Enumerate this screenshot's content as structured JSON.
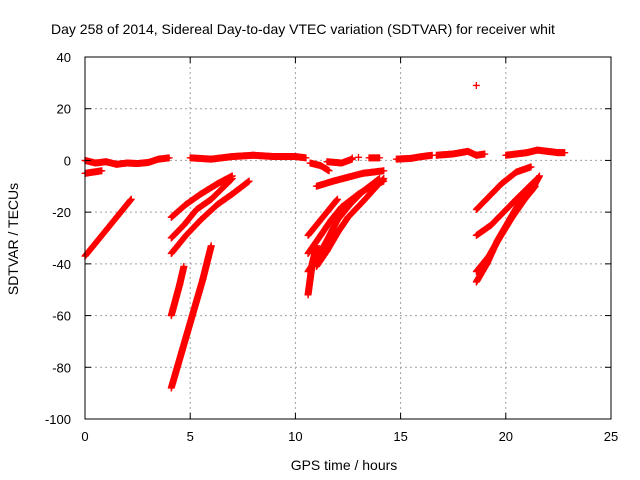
{
  "chart_data": {
    "type": "scatter",
    "title": "Day 258 of 2014, Sidereal Day-to-day VTEC variation (SDTVAR) for receiver whit",
    "xlabel": "GPS time / hours",
    "ylabel": "SDTVAR / TECUs",
    "xlim": [
      0,
      25
    ],
    "ylim": [
      -100,
      40
    ],
    "xticks": [
      0,
      5,
      10,
      15,
      20,
      25
    ],
    "yticks": [
      -100,
      -80,
      -60,
      -40,
      -20,
      0,
      20,
      40
    ],
    "grid": true,
    "marker": "+",
    "color": "#ff0000",
    "series": [
      {
        "segments": [
          [
            [
              0.0,
              0.0
            ],
            [
              0.5,
              -1.0
            ],
            [
              1.0,
              -0.5
            ],
            [
              1.5,
              -1.5
            ],
            [
              2.0,
              -1.0
            ],
            [
              2.5,
              -1.2
            ],
            [
              3.0,
              -0.8
            ],
            [
              3.5,
              0.5
            ],
            [
              4.0,
              1.0
            ]
          ],
          [
            [
              0.0,
              -5.0
            ],
            [
              0.8,
              -4.0
            ]
          ],
          [
            [
              0.0,
              -37.0
            ],
            [
              0.5,
              -32.0
            ],
            [
              1.0,
              -27.0
            ],
            [
              1.5,
              -22.0
            ],
            [
              2.2,
              -15.0
            ]
          ],
          [
            [
              4.1,
              -22.0
            ],
            [
              4.8,
              -17.0
            ],
            [
              5.5,
              -13.0
            ],
            [
              6.3,
              -9.0
            ],
            [
              7.0,
              -6.0
            ]
          ],
          [
            [
              4.1,
              -30.0
            ],
            [
              4.7,
              -25.0
            ],
            [
              5.3,
              -19.0
            ],
            [
              6.0,
              -15.0
            ],
            [
              7.0,
              -7.0
            ]
          ],
          [
            [
              4.1,
              -36.0
            ],
            [
              4.8,
              -29.0
            ],
            [
              5.5,
              -23.0
            ],
            [
              6.3,
              -17.0
            ],
            [
              7.0,
              -13.0
            ],
            [
              7.8,
              -8.0
            ]
          ],
          [
            [
              4.1,
              -60.0
            ],
            [
              4.5,
              -48.0
            ],
            [
              4.7,
              -41.0
            ]
          ],
          [
            [
              4.1,
              -88.0
            ],
            [
              4.6,
              -74.0
            ],
            [
              5.1,
              -60.0
            ],
            [
              5.6,
              -46.0
            ],
            [
              6.0,
              -33.0
            ]
          ],
          [
            [
              5.0,
              1.0
            ],
            [
              6.0,
              0.5
            ],
            [
              7.0,
              1.5
            ],
            [
              8.0,
              2.0
            ],
            [
              9.0,
              1.5
            ],
            [
              10.0,
              1.5
            ],
            [
              10.5,
              1.0
            ]
          ],
          [
            [
              10.6,
              -52.0
            ],
            [
              10.8,
              -40.0
            ],
            [
              11.0,
              -33.0
            ]
          ],
          [
            [
              10.6,
              -43.0
            ],
            [
              11.0,
              -38.0
            ],
            [
              11.5,
              -31.0
            ],
            [
              12.0,
              -23.0
            ],
            [
              12.6,
              -17.0
            ],
            [
              13.2,
              -12.0
            ],
            [
              14.0,
              -7.0
            ]
          ],
          [
            [
              10.6,
              -36.0
            ],
            [
              11.2,
              -29.0
            ],
            [
              11.7,
              -23.0
            ],
            [
              12.2,
              -18.0
            ],
            [
              13.0,
              -13.0
            ],
            [
              13.6,
              -10.0
            ],
            [
              14.2,
              -8.0
            ]
          ],
          [
            [
              11.0,
              -41.0
            ],
            [
              11.5,
              -35.0
            ],
            [
              12.0,
              -28.0
            ],
            [
              12.5,
              -22.0
            ],
            [
              13.2,
              -16.0
            ],
            [
              14.2,
              -7.0
            ]
          ],
          [
            [
              10.6,
              -29.0
            ],
            [
              11.2,
              -23.0
            ],
            [
              11.8,
              -17.0
            ],
            [
              12.0,
              -15.0
            ]
          ],
          [
            [
              11.0,
              -10.0
            ],
            [
              11.8,
              -8.0
            ],
            [
              12.5,
              -6.5
            ],
            [
              13.2,
              -5.0
            ],
            [
              14.2,
              -4.0
            ]
          ],
          [
            [
              10.7,
              -1.0
            ],
            [
              11.2,
              -2.0
            ],
            [
              11.6,
              -4.0
            ]
          ],
          [
            [
              11.5,
              -0.5
            ],
            [
              12.2,
              -1.0
            ],
            [
              12.7,
              0.5
            ]
          ],
          [
            [
              13.5,
              1.0
            ],
            [
              14.0,
              1.0
            ]
          ],
          [
            [
              14.8,
              0.5
            ],
            [
              15.5,
              0.8
            ],
            [
              16.0,
              1.5
            ],
            [
              16.5,
              2.0
            ]
          ],
          [
            [
              16.7,
              2.0
            ],
            [
              17.5,
              2.5
            ],
            [
              18.2,
              3.5
            ],
            [
              18.6,
              2.0
            ],
            [
              19.0,
              2.5
            ]
          ],
          [
            [
              18.6,
              -19.0
            ],
            [
              19.2,
              -14.0
            ],
            [
              19.8,
              -9.0
            ],
            [
              20.5,
              -4.5
            ],
            [
              21.2,
              -2.5
            ]
          ],
          [
            [
              18.6,
              -29.0
            ],
            [
              19.3,
              -25.0
            ],
            [
              19.9,
              -20.0
            ],
            [
              20.5,
              -15.0
            ],
            [
              21.0,
              -11.0
            ],
            [
              21.5,
              -7.0
            ]
          ],
          [
            [
              18.6,
              -47.0
            ],
            [
              19.1,
              -40.0
            ],
            [
              19.6,
              -31.0
            ],
            [
              20.1,
              -24.0
            ],
            [
              20.6,
              -17.0
            ],
            [
              21.2,
              -12.0
            ],
            [
              21.6,
              -6.0
            ]
          ],
          [
            [
              18.6,
              -43.0
            ],
            [
              19.2,
              -37.0
            ],
            [
              19.7,
              -30.0
            ],
            [
              20.3,
              -22.0
            ],
            [
              20.9,
              -15.0
            ],
            [
              21.4,
              -10.0
            ]
          ],
          [
            [
              20.0,
              2.0
            ],
            [
              20.5,
              2.5
            ],
            [
              21.0,
              3.0
            ],
            [
              21.5,
              4.0
            ],
            [
              22.0,
              3.5
            ],
            [
              22.5,
              3.0
            ],
            [
              22.8,
              3.0
            ]
          ]
        ],
        "points": [
          [
            18.6,
            29.0
          ],
          [
            12.7,
            1.0
          ],
          [
            13.0,
            1.2
          ]
        ]
      }
    ]
  }
}
